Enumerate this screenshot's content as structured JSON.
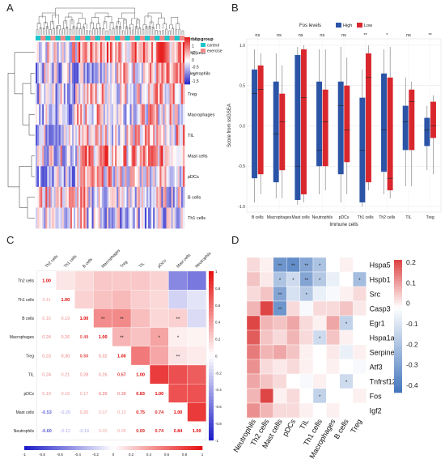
{
  "panels": {
    "A": "A",
    "B": "B",
    "C": "C",
    "D": "D"
  },
  "heatmapA": {
    "rows": [
      "Th2 cells",
      "Neutrophils",
      "Treg",
      "Macrophages",
      "TIL",
      "Mast cells",
      "pDCs",
      "B cells",
      "Th1 cells"
    ],
    "group_header": "group",
    "legend_title": "group",
    "legend_items": [
      {
        "label": "control",
        "color": "#19c6c9"
      },
      {
        "label": "exercise",
        "color": "#f08a8a"
      }
    ],
    "scale_ticks": [
      "1.5",
      "1",
      "0.5",
      "0",
      "-0.5",
      "-1",
      "-1.5"
    ]
  },
  "chart_data": [
    {
      "type": "box",
      "legend_title": "Fos levels",
      "series": [
        {
          "name": "High",
          "color": "#2b54a6"
        },
        {
          "name": "Low",
          "color": "#d9272e"
        }
      ],
      "categories": [
        "B cells",
        "Macrophages",
        "Mast cells",
        "Neutrophils",
        "pDCs",
        "Th1 cells",
        "Th2 cells",
        "TIL",
        "Treg"
      ],
      "significance": [
        "ns",
        "ns",
        "ns",
        "ns",
        "ns",
        "**",
        "*",
        "ns",
        "**"
      ],
      "xlabel": "Immune cells",
      "ylabel": "Score from ssGSEA",
      "ylim": [
        -1,
        1
      ],
      "yticks": [
        "-1.0",
        "-0.5",
        "0.0",
        "0.5",
        "1.0"
      ],
      "boxes": [
        {
          "high": {
            "min": -0.95,
            "q1": -0.65,
            "med": 0.4,
            "q3": 0.7,
            "max": 0.95
          },
          "low": {
            "min": -0.85,
            "q1": -0.6,
            "med": 0.45,
            "q3": 0.75,
            "max": 0.9
          }
        },
        {
          "high": {
            "min": -0.9,
            "q1": -0.7,
            "med": -0.1,
            "q3": 0.55,
            "max": 0.9
          },
          "low": {
            "min": -0.9,
            "q1": -0.55,
            "med": 0.05,
            "q3": 0.4,
            "max": 0.75
          }
        },
        {
          "high": {
            "min": -0.98,
            "q1": -0.92,
            "med": -0.5,
            "q3": 0.88,
            "max": 0.98
          },
          "low": {
            "min": -0.95,
            "q1": -0.85,
            "med": 0.35,
            "q3": 0.95,
            "max": 1.0
          }
        },
        {
          "high": {
            "min": -0.85,
            "q1": -0.5,
            "med": -0.3,
            "q3": 0.55,
            "max": 0.95
          },
          "low": {
            "min": -0.8,
            "q1": -0.5,
            "med": 0.05,
            "q3": 0.45,
            "max": 0.95
          }
        },
        {
          "high": {
            "min": -0.95,
            "q1": -0.6,
            "med": 0.25,
            "q3": 0.55,
            "max": 0.98
          },
          "low": {
            "min": -0.85,
            "q1": -0.45,
            "med": -0.05,
            "q3": 0.5,
            "max": 0.85
          }
        },
        {
          "high": {
            "min": -1.0,
            "q1": -0.95,
            "med": -0.3,
            "q3": 0.35,
            "max": 0.7
          },
          "low": {
            "min": -0.8,
            "q1": -0.7,
            "med": 0.6,
            "q3": 0.9,
            "max": 1.0
          }
        },
        {
          "high": {
            "min": -0.85,
            "q1": -0.57,
            "med": -0.05,
            "q3": 0.65,
            "max": 0.95
          },
          "low": {
            "min": -0.9,
            "q1": -0.8,
            "med": -0.65,
            "q3": 0.6,
            "max": 0.98
          }
        },
        {
          "high": {
            "min": -0.75,
            "q1": -0.3,
            "med": 0.05,
            "q3": 0.25,
            "max": 0.6
          },
          "low": {
            "min": -0.75,
            "q1": -0.3,
            "med": 0.3,
            "q3": 0.45,
            "max": 0.55
          }
        },
        {
          "high": {
            "min": -0.55,
            "q1": -0.25,
            "med": -0.05,
            "q3": 0.1,
            "max": 0.25
          },
          "low": {
            "min": -0.6,
            "q1": -0.15,
            "med": 0.0,
            "q3": 0.3,
            "max": 0.38
          }
        }
      ]
    },
    {
      "type": "heatmap",
      "labels": [
        "Th2 cells",
        "Th1 cells",
        "B cells",
        "Macrophages",
        "Treg",
        "TIL",
        "pDCs",
        "Mast cells",
        "Neutrophils"
      ],
      "lower": [
        [
          1.0
        ],
        [
          0.11,
          1.0
        ],
        [
          0.16,
          0.19,
          1.0
        ],
        [
          0.24,
          0.26,
          0.49,
          1.0
        ],
        [
          0.23,
          0.3,
          0.5,
          0.32,
          1.0
        ],
        [
          0.24,
          0.21,
          0.28,
          0.26,
          0.57,
          1.0
        ],
        [
          0.19,
          0.16,
          0.17,
          0.39,
          0.38,
          0.83,
          1.0
        ],
        [
          -0.53,
          -0.2,
          0.2,
          0.07,
          0.12,
          0.75,
          0.74,
          1.0
        ],
        [
          -0.6,
          -0.12,
          -0.16,
          0.05,
          0.09,
          0.69,
          0.74,
          0.84,
          1.0
        ]
      ],
      "stars": [
        {
          "r": 2,
          "c": 3,
          "s": "**"
        },
        {
          "r": 2,
          "c": 4,
          "s": "**"
        },
        {
          "r": 2,
          "c": 7,
          "s": "**"
        },
        {
          "r": 3,
          "c": 4,
          "s": "**"
        },
        {
          "r": 3,
          "c": 6,
          "s": "*"
        },
        {
          "r": 3,
          "c": 7,
          "s": "*"
        },
        {
          "r": 4,
          "c": 7,
          "s": "**"
        }
      ],
      "scale_ticks": [
        "1",
        "0.8",
        "0.6",
        "0.4",
        "0.2",
        "0",
        "-0.2",
        "-0.4",
        "-0.6",
        "-0.8",
        "-1"
      ],
      "bottom_ticks": [
        "-1",
        "-0.8",
        "-0.6",
        "-0.4",
        "-0.2",
        "0",
        "0.2",
        "0.4",
        "0.6",
        "0.8",
        "1"
      ]
    },
    {
      "type": "heatmap",
      "rows": [
        "Hspa5",
        "Hspb1",
        "Src",
        "Casp3",
        "Egr1",
        "Hspa1a",
        "Serpine1",
        "Atf3",
        "Tnfrsf12a",
        "Fos",
        "Igf2"
      ],
      "cols": [
        "Neutrophils",
        "Th2 cells",
        "Mast cells",
        "pDCs",
        "TIL",
        "Th1 cells",
        "Macrophages",
        "B cells",
        "Treg"
      ],
      "values": [
        [
          0.05,
          0.02,
          -0.35,
          -0.38,
          -0.3,
          -0.2,
          0.0,
          0.02,
          0.0
        ],
        [
          0.08,
          0.03,
          -0.2,
          -0.12,
          -0.3,
          -0.18,
          -0.05,
          0.0,
          -0.22
        ],
        [
          0.05,
          0.08,
          -0.3,
          -0.1,
          -0.18,
          -0.05,
          -0.02,
          0.02,
          0.05
        ],
        [
          0.1,
          0.3,
          -0.35,
          0.05,
          -0.02,
          0.05,
          0.05,
          0.08,
          0.03
        ],
        [
          0.3,
          0.1,
          0.08,
          0.12,
          0.05,
          0.02,
          0.12,
          -0.15,
          0.0
        ],
        [
          0.22,
          0.08,
          0.05,
          0.1,
          0.05,
          -0.12,
          0.08,
          0.02,
          0.0
        ],
        [
          0.18,
          0.1,
          0.12,
          0.08,
          0.02,
          0.0,
          0.03,
          -0.05,
          0.02
        ],
        [
          0.15,
          0.05,
          0.03,
          0.05,
          0.02,
          0.0,
          0.02,
          0.0,
          -0.02
        ],
        [
          0.12,
          0.08,
          0.05,
          0.0,
          -0.02,
          0.02,
          0.0,
          -0.12,
          0.0
        ],
        [
          0.1,
          0.3,
          0.02,
          0.05,
          0.0,
          -0.15,
          0.0,
          0.0,
          0.02
        ],
        [
          0.15,
          0.1,
          0.05,
          0.05,
          0.02,
          0.0,
          0.02,
          0.0,
          0.0
        ]
      ],
      "stars": [
        {
          "r": 0,
          "c": 2,
          "s": "**"
        },
        {
          "r": 0,
          "c": 3,
          "s": "**"
        },
        {
          "r": 0,
          "c": 4,
          "s": "**"
        },
        {
          "r": 0,
          "c": 5,
          "s": "*"
        },
        {
          "r": 1,
          "c": 2,
          "s": "*"
        },
        {
          "r": 1,
          "c": 3,
          "s": "*"
        },
        {
          "r": 1,
          "c": 4,
          "s": "**"
        },
        {
          "r": 1,
          "c": 5,
          "s": "*"
        },
        {
          "r": 1,
          "c": 8,
          "s": "*"
        },
        {
          "r": 2,
          "c": 2,
          "s": "**"
        },
        {
          "r": 2,
          "c": 4,
          "s": "*"
        },
        {
          "r": 3,
          "c": 2,
          "s": "**"
        },
        {
          "r": 4,
          "c": 7,
          "s": "*"
        },
        {
          "r": 5,
          "c": 5,
          "s": "*"
        },
        {
          "r": 8,
          "c": 7,
          "s": "*"
        },
        {
          "r": 9,
          "c": 5,
          "s": "*"
        }
      ],
      "scale_ticks": [
        "0.2",
        "0.1",
        "0",
        "-0.1",
        "-0.2",
        "-0.3",
        "-0.4"
      ]
    }
  ]
}
